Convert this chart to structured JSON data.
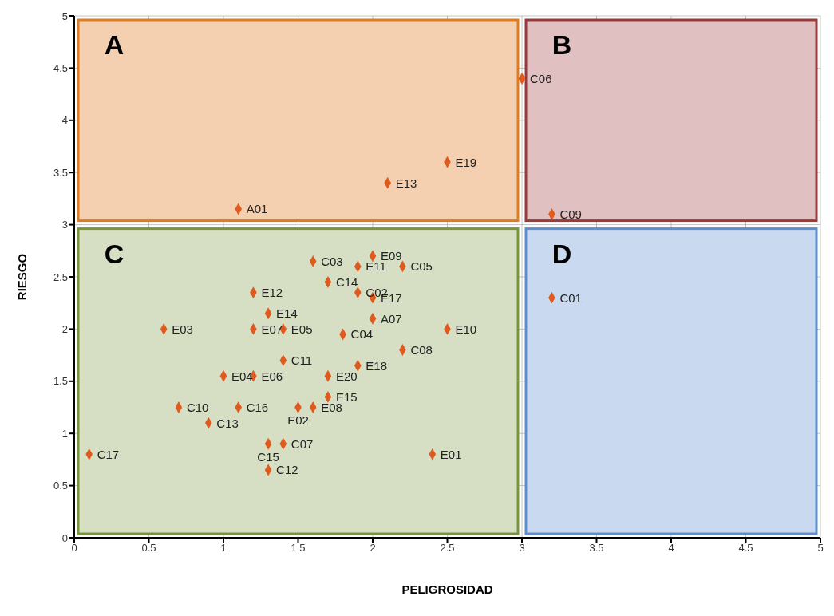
{
  "chart_data": {
    "type": "scatter",
    "xlabel": "PELIGROSIDAD",
    "ylabel": "RIESGO",
    "x": [
      1.1,
      2.1,
      2.5,
      3.0,
      3.2,
      3.2,
      1.6,
      2.0,
      1.9,
      2.2,
      1.7,
      1.2,
      1.9,
      2.0,
      1.3,
      2.0,
      1.2,
      1.4,
      0.6,
      1.8,
      2.5,
      2.2,
      1.4,
      1.9,
      1.0,
      1.2,
      1.7,
      1.7,
      0.7,
      1.1,
      1.5,
      1.6,
      0.9,
      0.1,
      1.3,
      1.4,
      2.4,
      1.3
    ],
    "values": [
      3.15,
      3.4,
      3.6,
      4.4,
      3.1,
      2.3,
      2.65,
      2.7,
      2.6,
      2.6,
      2.45,
      2.35,
      2.35,
      2.3,
      2.15,
      2.1,
      2.0,
      2.0,
      2.0,
      1.95,
      2.0,
      1.8,
      1.7,
      1.65,
      1.55,
      1.55,
      1.55,
      1.35,
      1.25,
      1.25,
      1.25,
      1.25,
      1.1,
      0.8,
      0.9,
      0.9,
      0.8,
      0.65
    ],
    "color": "#e05a1e",
    "marker": "diamond",
    "xlim": [
      0,
      5
    ],
    "xticks": [
      0,
      0.5,
      1,
      1.5,
      2,
      2.5,
      3,
      3.5,
      4,
      4.5,
      5
    ],
    "ylim": [
      0,
      5
    ],
    "yticks": [
      0,
      0.5,
      1,
      1.5,
      2,
      2.5,
      3,
      3.5,
      4,
      4.5,
      5
    ],
    "grid": true,
    "annotations": [
      {
        "text": "A01",
        "x": 1.1,
        "y": 3.15
      },
      {
        "text": "E13",
        "x": 2.1,
        "y": 3.4
      },
      {
        "text": "E19",
        "x": 2.5,
        "y": 3.6
      },
      {
        "text": "C06",
        "x": 3.0,
        "y": 4.4
      },
      {
        "text": "C09",
        "x": 3.2,
        "y": 3.1
      },
      {
        "text": "C01",
        "x": 3.2,
        "y": 2.3
      },
      {
        "text": "C03",
        "x": 1.6,
        "y": 2.65
      },
      {
        "text": "E09",
        "x": 2.0,
        "y": 2.7
      },
      {
        "text": "E11",
        "x": 1.9,
        "y": 2.6
      },
      {
        "text": "C05",
        "x": 2.2,
        "y": 2.6
      },
      {
        "text": "C14",
        "x": 1.7,
        "y": 2.45
      },
      {
        "text": "E12",
        "x": 1.2,
        "y": 2.35
      },
      {
        "text": "C02",
        "x": 1.9,
        "y": 2.35
      },
      {
        "text": "E17",
        "x": 2.0,
        "y": 2.3
      },
      {
        "text": "E14",
        "x": 1.3,
        "y": 2.15
      },
      {
        "text": "A07",
        "x": 2.0,
        "y": 2.1
      },
      {
        "text": "E07",
        "x": 1.2,
        "y": 2.0
      },
      {
        "text": "E05",
        "x": 1.4,
        "y": 2.0
      },
      {
        "text": "E03",
        "x": 0.6,
        "y": 2.0
      },
      {
        "text": "C04",
        "x": 1.8,
        "y": 1.95
      },
      {
        "text": "E10",
        "x": 2.5,
        "y": 2.0
      },
      {
        "text": "C08",
        "x": 2.2,
        "y": 1.8
      },
      {
        "text": "C11",
        "x": 1.4,
        "y": 1.7
      },
      {
        "text": "E18",
        "x": 1.9,
        "y": 1.65
      },
      {
        "text": "E04",
        "x": 1.0,
        "y": 1.55
      },
      {
        "text": "E06",
        "x": 1.2,
        "y": 1.55
      },
      {
        "text": "E20",
        "x": 1.7,
        "y": 1.55
      },
      {
        "text": "E15",
        "x": 1.7,
        "y": 1.35
      },
      {
        "text": "C10",
        "x": 0.7,
        "y": 1.25
      },
      {
        "text": "C16",
        "x": 1.1,
        "y": 1.25
      },
      {
        "text": "E02",
        "x": 1.5,
        "y": 1.25
      },
      {
        "text": "E08",
        "x": 1.6,
        "y": 1.25
      },
      {
        "text": "C13",
        "x": 0.9,
        "y": 1.1
      },
      {
        "text": "C17",
        "x": 0.1,
        "y": 0.8
      },
      {
        "text": "C15",
        "x": 1.3,
        "y": 0.9
      },
      {
        "text": "C07",
        "x": 1.4,
        "y": 0.9
      },
      {
        "text": "E01",
        "x": 2.4,
        "y": 0.8
      },
      {
        "text": "C12",
        "x": 1.3,
        "y": 0.65
      },
      "A",
      "B",
      "C",
      "D"
    ]
  }
}
